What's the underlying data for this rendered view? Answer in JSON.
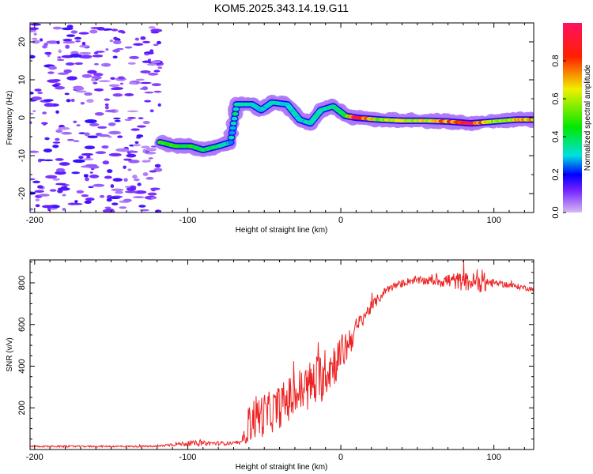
{
  "chart_data": [
    {
      "type": "heatmap",
      "title": "KOM5.2025.343.14.19.G11",
      "xlabel": "Height of straight line (km)",
      "ylabel": "Frequency (Hz)",
      "xlim": [
        -203,
        126
      ],
      "ylim": [
        -25,
        25
      ],
      "xticks": [
        -200,
        -100,
        0,
        100
      ],
      "yticks": [
        -20,
        -10,
        0,
        10,
        20
      ],
      "noise_region": {
        "x_range": [
          -203,
          -118
        ],
        "y_range": [
          -25,
          25
        ],
        "level": 0.15
      },
      "ridge": [
        {
          "x": -118,
          "y": -6.5,
          "amp": 0.45
        },
        {
          "x": -108,
          "y": -7.5,
          "amp": 0.45
        },
        {
          "x": -98,
          "y": -7.5,
          "amp": 0.45
        },
        {
          "x": -90,
          "y": -8.5,
          "amp": 0.4
        },
        {
          "x": -80,
          "y": -7.5,
          "amp": 0.38
        },
        {
          "x": -72,
          "y": -6.5,
          "amp": 0.3
        },
        {
          "x": -68,
          "y": 3.5,
          "amp": 0.35
        },
        {
          "x": -58,
          "y": 3.5,
          "amp": 0.35
        },
        {
          "x": -52,
          "y": 2.0,
          "amp": 0.3
        },
        {
          "x": -45,
          "y": 4.0,
          "amp": 0.32
        },
        {
          "x": -35,
          "y": 3.5,
          "amp": 0.32
        },
        {
          "x": -27,
          "y": -0.5,
          "amp": 0.3
        },
        {
          "x": -20,
          "y": -1.5,
          "amp": 0.32
        },
        {
          "x": -13,
          "y": 2.0,
          "amp": 0.34
        },
        {
          "x": -5,
          "y": 3.0,
          "amp": 0.36
        },
        {
          "x": 3,
          "y": 0.5,
          "amp": 0.42
        },
        {
          "x": 10,
          "y": 0.0,
          "amp": 0.95
        },
        {
          "x": 25,
          "y": -0.5,
          "amp": 0.55
        },
        {
          "x": 40,
          "y": -0.8,
          "amp": 0.6
        },
        {
          "x": 55,
          "y": -0.8,
          "amp": 0.62
        },
        {
          "x": 70,
          "y": -1.0,
          "amp": 0.75
        },
        {
          "x": 85,
          "y": -1.5,
          "amp": 0.9
        },
        {
          "x": 100,
          "y": -1.0,
          "amp": 0.55
        },
        {
          "x": 115,
          "y": -0.5,
          "amp": 0.65
        },
        {
          "x": 126,
          "y": -0.5,
          "amp": 0.7
        }
      ],
      "colorbar": {
        "label": "Normalized spectral amplitude",
        "range": [
          0.0,
          1.0
        ],
        "ticks": [
          "0.0",
          "0.2",
          "0.4",
          "0.6",
          "0.8"
        ],
        "tick_values": [
          0.0,
          0.2,
          0.4,
          0.6,
          0.8
        ],
        "colors": [
          "#d8b8f2",
          "#7020ff",
          "#0000ff",
          "#00e0e0",
          "#00e800",
          "#f0f000",
          "#ff2000",
          "#ff1060"
        ],
        "color_stops": [
          0.0,
          0.12,
          0.2,
          0.3,
          0.45,
          0.65,
          0.82,
          1.0
        ]
      }
    },
    {
      "type": "line",
      "xlabel": "Height of straight line (km)",
      "ylabel": "SNR (v/v)",
      "xlim": [
        -203,
        126
      ],
      "ylim": [
        0,
        910
      ],
      "xticks": [
        -200,
        -100,
        0,
        100
      ],
      "yticks": [
        200,
        400,
        600,
        800
      ],
      "line_color": "#ee2222",
      "series": [
        {
          "name": "SNR",
          "envelope": [
            {
              "x": -203,
              "base": 15,
              "spread": 8
            },
            {
              "x": -120,
              "base": 15,
              "spread": 8
            },
            {
              "x": -110,
              "base": 25,
              "spread": 18
            },
            {
              "x": -95,
              "base": 30,
              "spread": 25
            },
            {
              "x": -65,
              "base": 30,
              "spread": 15
            },
            {
              "x": -58,
              "base": 150,
              "spread": 230
            },
            {
              "x": -45,
              "base": 180,
              "spread": 200
            },
            {
              "x": -30,
              "base": 260,
              "spread": 230
            },
            {
              "x": -15,
              "base": 330,
              "spread": 260
            },
            {
              "x": 0,
              "base": 450,
              "spread": 200
            },
            {
              "x": 15,
              "base": 640,
              "spread": 70
            },
            {
              "x": 30,
              "base": 770,
              "spread": 40
            },
            {
              "x": 45,
              "base": 810,
              "spread": 35
            },
            {
              "x": 60,
              "base": 810,
              "spread": 45
            },
            {
              "x": 70,
              "base": 810,
              "spread": 80
            },
            {
              "x": 95,
              "base": 800,
              "spread": 100
            },
            {
              "x": 100,
              "base": 800,
              "spread": 30
            },
            {
              "x": 126,
              "base": 770,
              "spread": 25
            }
          ]
        }
      ]
    }
  ]
}
